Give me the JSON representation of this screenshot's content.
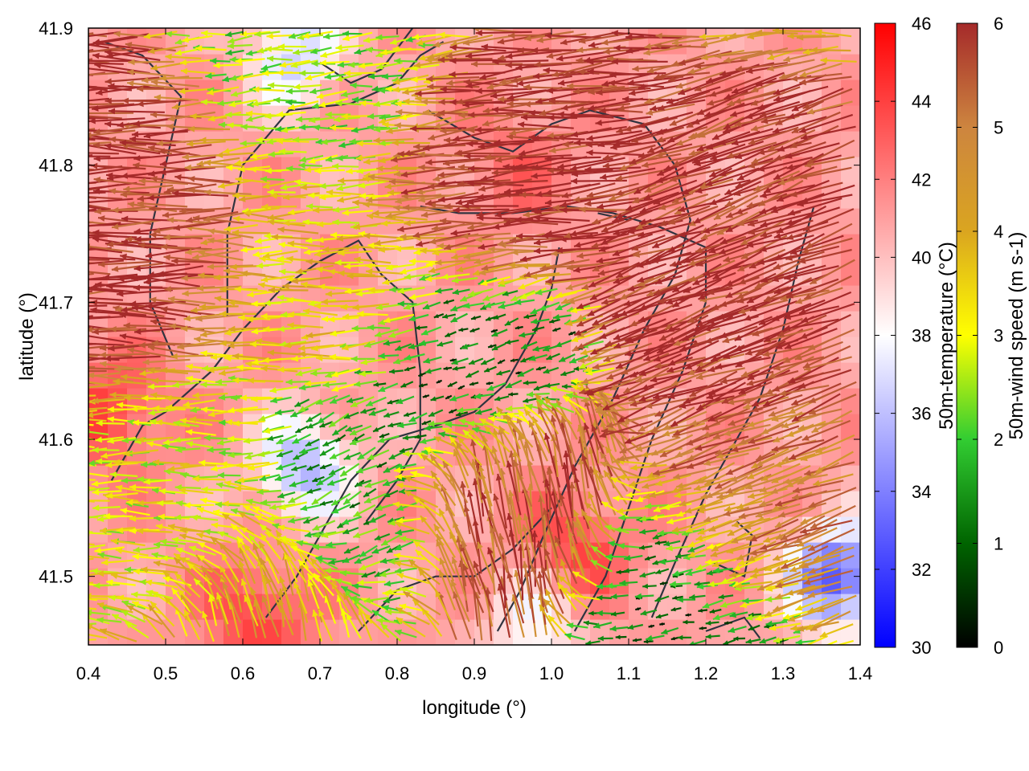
{
  "chart_data": {
    "type": "heatmap",
    "title": "",
    "xlabel": "longitude (°)",
    "ylabel": "latitude (°)",
    "xlim": [
      0.4,
      1.4
    ],
    "ylim": [
      41.45,
      41.9
    ],
    "xticks": [
      {
        "value": 0.4,
        "label": "0.4"
      },
      {
        "value": 0.5,
        "label": "0.5"
      },
      {
        "value": 0.6,
        "label": "0.6"
      },
      {
        "value": 0.7,
        "label": "0.7"
      },
      {
        "value": 0.8,
        "label": "0.8"
      },
      {
        "value": 0.9,
        "label": "0.9"
      },
      {
        "value": 1.0,
        "label": "1.0"
      },
      {
        "value": 1.1,
        "label": "1.1"
      },
      {
        "value": 1.2,
        "label": "1.2"
      },
      {
        "value": 1.3,
        "label": "1.3"
      },
      {
        "value": 1.4,
        "label": "1.4"
      }
    ],
    "yticks": [
      {
        "value": 41.5,
        "label": "41.5"
      },
      {
        "value": 41.6,
        "label": "41.6"
      },
      {
        "value": 41.7,
        "label": "41.7"
      },
      {
        "value": 41.8,
        "label": "41.8"
      },
      {
        "value": 41.9,
        "label": "41.9"
      }
    ],
    "grid": false,
    "background_field": {
      "name": "50m-temperature",
      "unit": "°C",
      "colorbar_label": "50m-temperature (°C)",
      "range": [
        30,
        46
      ],
      "colors": [
        "#0000ff",
        "#ffffff",
        "#ff0000"
      ],
      "ticks": [
        {
          "value": 30,
          "label": "30"
        },
        {
          "value": 32,
          "label": "32"
        },
        {
          "value": 34,
          "label": "34"
        },
        {
          "value": 36,
          "label": "36"
        },
        {
          "value": 38,
          "label": "38"
        },
        {
          "value": 40,
          "label": "40"
        },
        {
          "value": 42,
          "label": "42"
        },
        {
          "value": 44,
          "label": "44"
        },
        {
          "value": 46,
          "label": "46"
        }
      ],
      "typical_value": 41,
      "cool_regions": [
        {
          "lon": 0.68,
          "lat": 41.58,
          "value": 35.5
        },
        {
          "lon": 1.37,
          "lat": 41.5,
          "value": 32.5
        },
        {
          "lon": 0.67,
          "lat": 41.88,
          "value": 36.5
        },
        {
          "lon": 0.98,
          "lat": 41.47,
          "value": 37.5
        }
      ],
      "warm_regions": [
        {
          "lon": 0.62,
          "lat": 41.47,
          "value": 44
        },
        {
          "lon": 1.03,
          "lat": 41.52,
          "value": 44
        },
        {
          "lon": 0.43,
          "lat": 41.62,
          "value": 44
        },
        {
          "lon": 0.95,
          "lat": 41.8,
          "value": 42.5
        }
      ]
    },
    "vector_field": {
      "name": "50m-wind speed",
      "unit": "m s-1",
      "colorbar_label": "50m-wind speed (m s-1)",
      "range": [
        0,
        6
      ],
      "colors": [
        "#000000",
        "#006400",
        "#32cd32",
        "#ffff00",
        "#daa520",
        "#cd853f",
        "#a52a2a"
      ],
      "ticks": [
        {
          "value": 0,
          "label": "0"
        },
        {
          "value": 1,
          "label": "1"
        },
        {
          "value": 2,
          "label": "2"
        },
        {
          "value": 3,
          "label": "3"
        },
        {
          "value": 4,
          "label": "4"
        },
        {
          "value": 5,
          "label": "5"
        },
        {
          "value": 6,
          "label": "6"
        }
      ],
      "regimes": [
        {
          "lon": 0.45,
          "lat": 41.75,
          "speed": 6,
          "direction_deg": 180
        },
        {
          "lon": 0.95,
          "lat": 41.8,
          "speed": 6,
          "direction_deg": 185
        },
        {
          "lon": 1.25,
          "lat": 41.7,
          "speed": 6,
          "direction_deg": 200
        },
        {
          "lon": 0.95,
          "lat": 41.55,
          "speed": 5.5,
          "direction_deg": 100
        },
        {
          "lon": 1.3,
          "lat": 41.55,
          "speed": 5,
          "direction_deg": 200
        },
        {
          "lon": 0.75,
          "lat": 41.72,
          "speed": 3.5,
          "direction_deg": 180
        },
        {
          "lon": 0.9,
          "lat": 41.65,
          "speed": 0.8,
          "direction_deg": 200
        },
        {
          "lon": 0.75,
          "lat": 41.55,
          "speed": 1.5,
          "direction_deg": 210
        },
        {
          "lon": 0.55,
          "lat": 41.55,
          "speed": 3,
          "direction_deg": 180
        },
        {
          "lon": 1.2,
          "lat": 41.47,
          "speed": 1,
          "direction_deg": 190
        },
        {
          "lon": 0.75,
          "lat": 41.86,
          "speed": 2.5,
          "direction_deg": 185
        },
        {
          "lon": 0.65,
          "lat": 41.48,
          "speed": 4,
          "direction_deg": 100
        }
      ]
    },
    "contour_lines": [
      {
        "name": "terrain-contour-1",
        "points": [
          [
            0.43,
            41.57
          ],
          [
            0.47,
            41.61
          ],
          [
            0.5,
            41.62
          ],
          [
            0.56,
            41.65
          ],
          [
            0.6,
            41.68
          ],
          [
            0.65,
            41.71
          ],
          [
            0.7,
            41.73
          ],
          [
            0.75,
            41.745
          ],
          [
            0.78,
            41.72
          ],
          [
            0.82,
            41.7
          ],
          [
            0.83,
            41.65
          ],
          [
            0.83,
            41.6
          ],
          [
            0.8,
            41.57
          ],
          [
            0.76,
            41.54
          ]
        ]
      },
      {
        "name": "terrain-contour-2",
        "points": [
          [
            0.51,
            41.66
          ],
          [
            0.48,
            41.7
          ],
          [
            0.48,
            41.75
          ],
          [
            0.5,
            41.8
          ],
          [
            0.52,
            41.85
          ],
          [
            0.47,
            41.88
          ],
          [
            0.42,
            41.89
          ]
        ]
      },
      {
        "name": "terrain-contour-3",
        "points": [
          [
            0.58,
            41.69
          ],
          [
            0.58,
            41.75
          ],
          [
            0.6,
            41.8
          ],
          [
            0.66,
            41.84
          ],
          [
            0.74,
            41.845
          ],
          [
            0.8,
            41.86
          ],
          [
            0.83,
            41.88
          ],
          [
            0.86,
            41.89
          ]
        ]
      },
      {
        "name": "terrain-contour-4",
        "points": [
          [
            0.84,
            41.84
          ],
          [
            0.9,
            41.82
          ],
          [
            0.95,
            41.81
          ],
          [
            1.0,
            41.83
          ],
          [
            1.05,
            41.84
          ],
          [
            1.12,
            41.83
          ],
          [
            1.16,
            41.8
          ],
          [
            1.18,
            41.76
          ],
          [
            1.16,
            41.72
          ],
          [
            1.12,
            41.68
          ],
          [
            1.08,
            41.63
          ],
          [
            1.03,
            41.58
          ],
          [
            0.99,
            41.53
          ],
          [
            0.96,
            41.49
          ],
          [
            0.93,
            41.46
          ]
        ]
      },
      {
        "name": "terrain-contour-5",
        "points": [
          [
            0.83,
            41.77
          ],
          [
            0.88,
            41.765
          ],
          [
            0.95,
            41.765
          ],
          [
            1.02,
            41.77
          ],
          [
            1.08,
            41.765
          ],
          [
            1.14,
            41.755
          ],
          [
            1.2,
            41.74
          ],
          [
            1.2,
            41.7
          ],
          [
            1.17,
            41.65
          ],
          [
            1.13,
            41.6
          ],
          [
            1.1,
            41.55
          ],
          [
            1.07,
            41.5
          ],
          [
            1.03,
            41.46
          ]
        ]
      },
      {
        "name": "terrain-contour-6",
        "points": [
          [
            0.63,
            41.47
          ],
          [
            0.67,
            41.5
          ],
          [
            0.7,
            41.53
          ],
          [
            0.74,
            41.57
          ],
          [
            0.79,
            41.6
          ],
          [
            0.85,
            41.61
          ],
          [
            0.9,
            41.62
          ],
          [
            0.94,
            41.64
          ],
          [
            0.98,
            41.68
          ],
          [
            1.0,
            41.71
          ],
          [
            1.01,
            41.74
          ]
        ]
      },
      {
        "name": "terrain-contour-7",
        "points": [
          [
            1.34,
            41.77
          ],
          [
            1.32,
            41.73
          ],
          [
            1.3,
            41.68
          ],
          [
            1.27,
            41.63
          ],
          [
            1.24,
            41.6
          ],
          [
            1.2,
            41.56
          ],
          [
            1.16,
            41.51
          ],
          [
            1.13,
            41.47
          ]
        ]
      },
      {
        "name": "terrain-contour-8",
        "points": [
          [
            0.75,
            41.46
          ],
          [
            0.8,
            41.49
          ],
          [
            0.85,
            41.5
          ],
          [
            0.9,
            41.5
          ],
          [
            0.95,
            41.52
          ],
          [
            1.0,
            41.55
          ]
        ]
      },
      {
        "name": "terrain-contour-9",
        "points": [
          [
            0.7,
            41.875
          ],
          [
            0.74,
            41.86
          ],
          [
            0.78,
            41.87
          ],
          [
            0.82,
            41.9
          ]
        ]
      },
      {
        "name": "terrain-contour-10",
        "points": [
          [
            1.21,
            41.51
          ],
          [
            1.25,
            41.5
          ],
          [
            1.26,
            41.53
          ],
          [
            1.24,
            41.54
          ]
        ]
      },
      {
        "name": "terrain-contour-11",
        "points": [
          [
            1.06,
            41.765
          ],
          [
            1.1,
            41.76
          ]
        ]
      },
      {
        "name": "terrain-contour-12",
        "points": [
          [
            1.2,
            41.46
          ],
          [
            1.25,
            41.47
          ],
          [
            1.27,
            41.455
          ]
        ]
      }
    ]
  }
}
